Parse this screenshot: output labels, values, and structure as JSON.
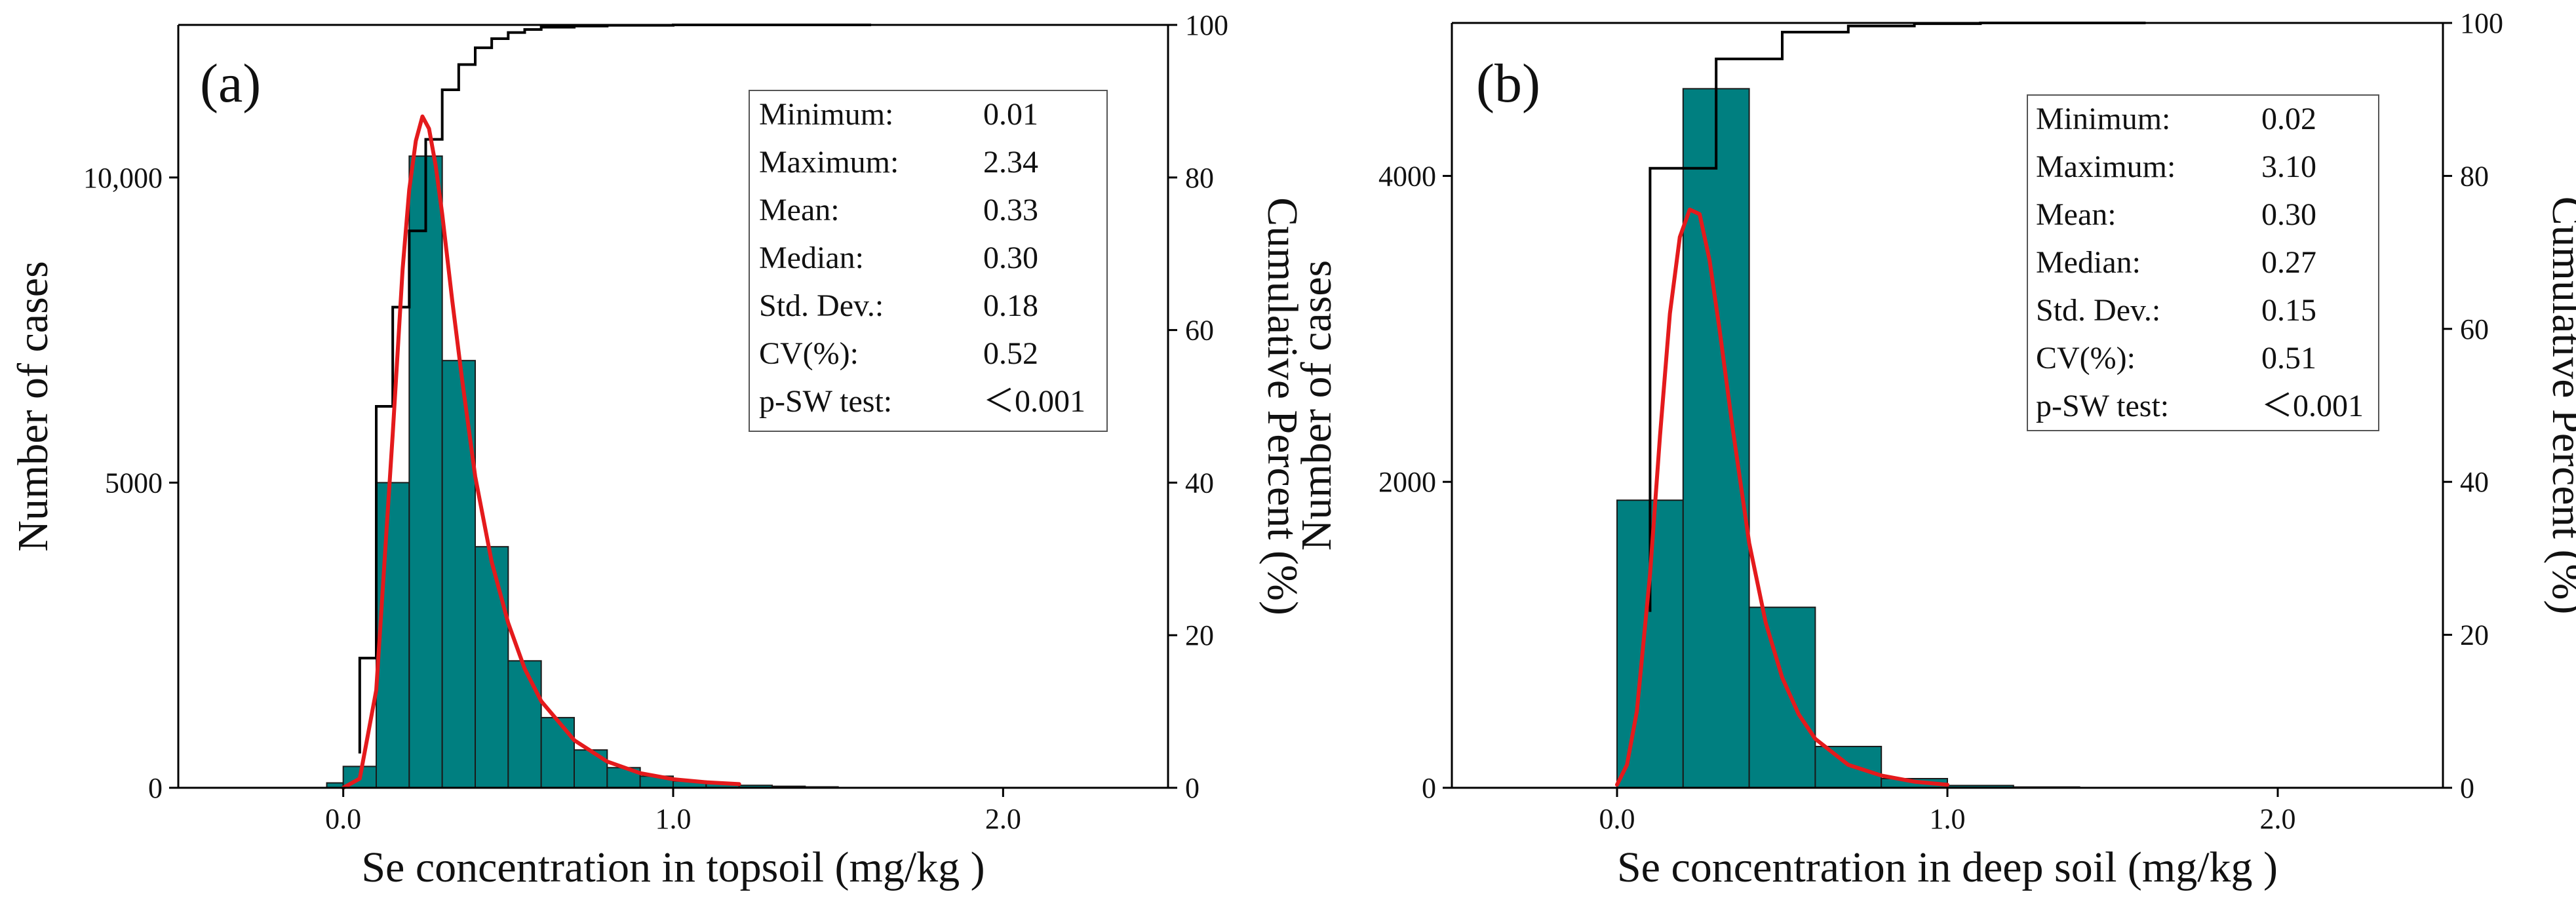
{
  "chart_data": [
    {
      "type": "bar",
      "panel_label": "(a)",
      "xlabel": "Se concentration in topsoil (mg/kg )",
      "ylabel": "Number of cases",
      "y2label": "Cumulative Percent (%)",
      "xlim": [
        -0.5,
        2.5
      ],
      "ylim": [
        0,
        12500
      ],
      "y2lim": [
        0,
        100
      ],
      "x_ticks": [
        0.0,
        1.0,
        2.0
      ],
      "x_tick_labels": [
        "0.0",
        "1.0",
        "2.0"
      ],
      "y_ticks": [
        0,
        5000,
        10000
      ],
      "y_tick_labels": [
        "0",
        "5000",
        "10,000"
      ],
      "y2_ticks": [
        0,
        20,
        40,
        60,
        80,
        100
      ],
      "y2_tick_labels": [
        "0",
        "20",
        "40",
        "60",
        "80",
        "100"
      ],
      "bins": [
        {
          "x0": -0.05,
          "x1": 0.0,
          "count": 80
        },
        {
          "x0": 0.0,
          "x1": 0.1,
          "count": 350
        },
        {
          "x0": 0.1,
          "x1": 0.2,
          "count": 5000
        },
        {
          "x0": 0.2,
          "x1": 0.3,
          "count": 10350
        },
        {
          "x0": 0.3,
          "x1": 0.4,
          "count": 7000
        },
        {
          "x0": 0.4,
          "x1": 0.5,
          "count": 3950
        },
        {
          "x0": 0.5,
          "x1": 0.6,
          "count": 2080
        },
        {
          "x0": 0.6,
          "x1": 0.7,
          "count": 1150
        },
        {
          "x0": 0.7,
          "x1": 0.8,
          "count": 620
        },
        {
          "x0": 0.8,
          "x1": 0.9,
          "count": 330
        },
        {
          "x0": 0.9,
          "x1": 1.0,
          "count": 190
        },
        {
          "x0": 1.0,
          "x1": 1.1,
          "count": 110
        },
        {
          "x0": 1.1,
          "x1": 1.2,
          "count": 70
        },
        {
          "x0": 1.2,
          "x1": 1.3,
          "count": 40
        },
        {
          "x0": 1.3,
          "x1": 1.4,
          "count": 25
        },
        {
          "x0": 1.4,
          "x1": 1.5,
          "count": 15
        }
      ],
      "cumulative": {
        "x": [
          0.05,
          0.05,
          0.1,
          0.1,
          0.15,
          0.15,
          0.2,
          0.2,
          0.25,
          0.25,
          0.3,
          0.3,
          0.35,
          0.35,
          0.4,
          0.4,
          0.45,
          0.45,
          0.5,
          0.5,
          0.55,
          0.55,
          0.6,
          0.6,
          0.7,
          0.7,
          0.8,
          0.8,
          1.0,
          1.0,
          1.3,
          1.3,
          1.6
        ],
        "y": [
          4.5,
          17,
          17,
          50,
          50,
          63,
          63,
          73,
          73,
          85,
          85,
          91.5,
          91.5,
          94.8,
          94.8,
          97,
          97,
          98.2,
          98.2,
          99,
          99,
          99.4,
          99.4,
          99.7,
          99.7,
          99.85,
          99.85,
          99.95,
          99.95,
          100,
          100,
          100,
          100
        ]
      },
      "fit_curve": {
        "x": [
          0.0,
          0.05,
          0.1,
          0.15,
          0.18,
          0.2,
          0.22,
          0.24,
          0.26,
          0.28,
          0.3,
          0.33,
          0.36,
          0.4,
          0.45,
          0.5,
          0.55,
          0.6,
          0.7,
          0.8,
          0.9,
          1.0,
          1.1,
          1.2
        ],
        "y": [
          0,
          150,
          1600,
          5800,
          8500,
          9800,
          10600,
          11000,
          10800,
          10200,
          9400,
          8000,
          6700,
          5100,
          3700,
          2700,
          1950,
          1420,
          780,
          430,
          240,
          140,
          90,
          60
        ]
      },
      "stats": [
        {
          "label": "Minimum:",
          "value": "0.01"
        },
        {
          "label": "Maximum:",
          "value": "2.34"
        },
        {
          "label": "Mean:",
          "value": "0.33"
        },
        {
          "label": "Median:",
          "value": "0.30"
        },
        {
          "label": "Std. Dev.:",
          "value": "0.18"
        },
        {
          "label": "CV(%):",
          "value": "0.52"
        },
        {
          "label": "p-SW test:",
          "value": "＜0.001"
        }
      ],
      "grid": false
    },
    {
      "type": "bar",
      "panel_label": "(b)",
      "xlabel": "Se concentration in deep soil (mg/kg )",
      "ylabel": "Number of cases",
      "y2label": "Cumulative Percent (%)",
      "xlim": [
        -0.5,
        2.5
      ],
      "ylim": [
        0,
        5000
      ],
      "y2lim": [
        0,
        100
      ],
      "x_ticks": [
        0.0,
        1.0,
        2.0
      ],
      "x_tick_labels": [
        "0.0",
        "1.0",
        "2.0"
      ],
      "y_ticks": [
        0,
        2000,
        4000
      ],
      "y_tick_labels": [
        "0",
        "2000",
        "4000"
      ],
      "y2_ticks": [
        0,
        20,
        40,
        60,
        80,
        100
      ],
      "y2_tick_labels": [
        "0",
        "20",
        "40",
        "60",
        "80",
        "100"
      ],
      "bins": [
        {
          "x0": 0.0,
          "x1": 0.2,
          "count": 1880
        },
        {
          "x0": 0.2,
          "x1": 0.4,
          "count": 4570
        },
        {
          "x0": 0.4,
          "x1": 0.6,
          "count": 1180
        },
        {
          "x0": 0.6,
          "x1": 0.8,
          "count": 270
        },
        {
          "x0": 0.8,
          "x1": 1.0,
          "count": 60
        },
        {
          "x0": 1.0,
          "x1": 1.2,
          "count": 15
        },
        {
          "x0": 1.2,
          "x1": 1.4,
          "count": 5
        }
      ],
      "cumulative": {
        "x": [
          0.1,
          0.1,
          0.3,
          0.3,
          0.5,
          0.5,
          0.7,
          0.7,
          0.9,
          0.9,
          1.1,
          1.1,
          1.3,
          1.3,
          1.6
        ],
        "y": [
          23,
          81,
          81,
          95.3,
          95.3,
          98.8,
          98.8,
          99.6,
          99.6,
          99.9,
          99.9,
          100,
          100,
          100,
          100
        ]
      },
      "fit_curve": {
        "x": [
          0.0,
          0.03,
          0.06,
          0.1,
          0.13,
          0.16,
          0.19,
          0.22,
          0.25,
          0.28,
          0.31,
          0.35,
          0.4,
          0.45,
          0.5,
          0.55,
          0.6,
          0.7,
          0.8,
          0.9,
          1.0
        ],
        "y": [
          20,
          150,
          500,
          1400,
          2300,
          3100,
          3600,
          3780,
          3750,
          3450,
          3000,
          2350,
          1600,
          1080,
          720,
          480,
          320,
          150,
          80,
          40,
          20
        ]
      },
      "stats": [
        {
          "label": "Minimum:",
          "value": "0.02"
        },
        {
          "label": "Maximum:",
          "value": "3.10"
        },
        {
          "label": "Mean:",
          "value": "0.30"
        },
        {
          "label": "Median:",
          "value": "0.27"
        },
        {
          "label": "Std. Dev.:",
          "value": "0.15"
        },
        {
          "label": "CV(%):",
          "value": "0.51"
        },
        {
          "label": "p-SW test:",
          "value": "＜0.001"
        }
      ],
      "grid": false
    }
  ],
  "colors": {
    "bar_fill": "#007f80",
    "bar_stroke": "#1a1a1a",
    "fit_curve": "#e41a1c",
    "cumulative_line": "#000000",
    "axis": "#000000"
  }
}
